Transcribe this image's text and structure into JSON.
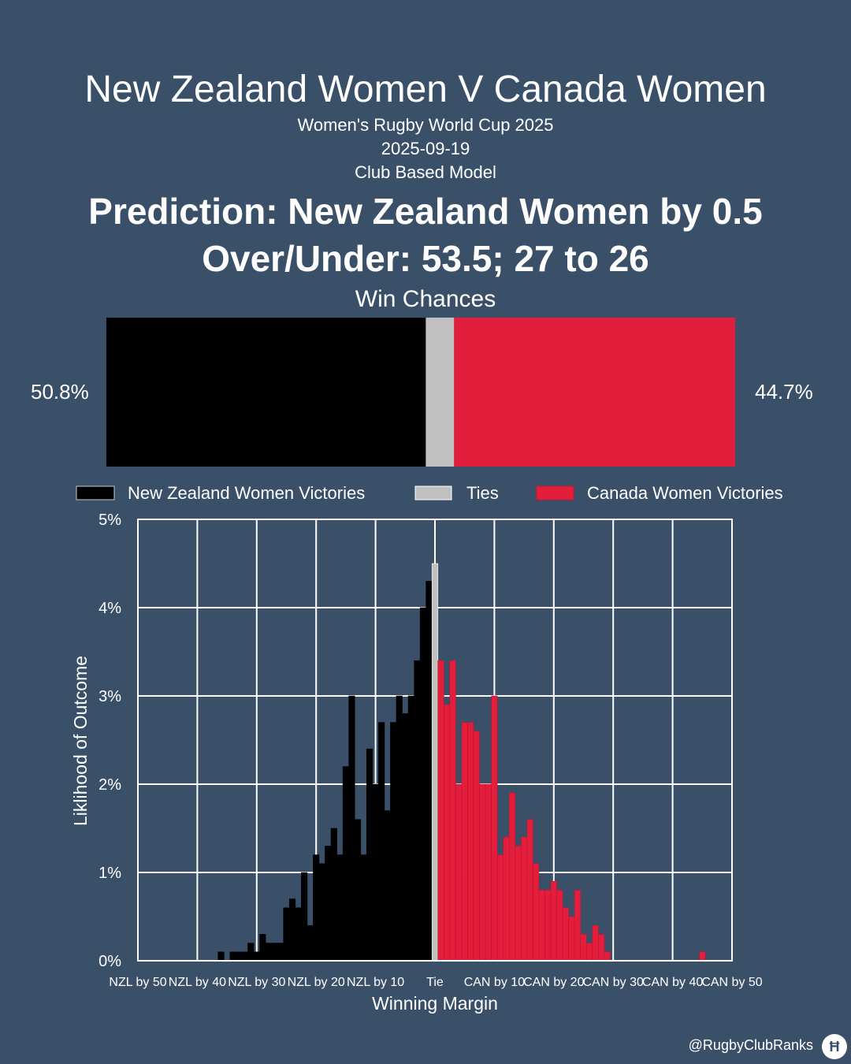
{
  "header": {
    "title": "New Zealand Women V Canada Women",
    "competition": "Women's Rugby World Cup 2025",
    "date": "2025-09-19",
    "model": "Club Based Model",
    "prediction": "Prediction: New Zealand Women by 0.5",
    "over_under": "Over/Under: 53.5; 27 to 26"
  },
  "win_chances": {
    "label": "Win Chances",
    "nzl_pct_label": "50.8%",
    "can_pct_label": "44.7%",
    "nzl": 50.8,
    "tie": 4.5,
    "can": 44.7,
    "colors": {
      "nzl": "#000000",
      "tie": "#c0c0c0",
      "can": "#e31e3c"
    }
  },
  "legend": {
    "nzl": "New Zealand Women Victories",
    "tie": "Ties",
    "can": "Canada Women Victories"
  },
  "chart_data": {
    "type": "bar",
    "xlabel": "Winning Margin",
    "ylabel": "Liklihood of Outcome",
    "xlim": [
      -50,
      50
    ],
    "ylim": [
      0,
      5
    ],
    "y_ticks": [
      "0%",
      "1%",
      "2%",
      "3%",
      "4%",
      "5%"
    ],
    "x_ticks": [
      "NZL by 50",
      "NZL by 40",
      "NZL by 30",
      "NZL by 20",
      "NZL by 10",
      "Tie",
      "CAN by 10",
      "CAN by 20",
      "CAN by 30",
      "CAN by 40",
      "CAN by 50"
    ],
    "grid": true,
    "series": [
      {
        "name": "New Zealand Women Victories",
        "color": "#000000",
        "x": [
          -1,
          -2,
          -3,
          -4,
          -5,
          -6,
          -7,
          -8,
          -9,
          -10,
          -11,
          -12,
          -13,
          -14,
          -15,
          -16,
          -17,
          -18,
          -19,
          -20,
          -21,
          -22,
          -23,
          -24,
          -25,
          -26,
          -27,
          -28,
          -29,
          -30,
          -31,
          -32,
          -33,
          -34,
          -35,
          -36,
          -37,
          -38,
          -39,
          -40
        ],
        "values": [
          4.3,
          4.0,
          3.4,
          3.0,
          2.8,
          3.0,
          2.7,
          1.7,
          2.7,
          2.0,
          2.4,
          1.2,
          1.6,
          3.0,
          2.2,
          1.2,
          1.5,
          1.3,
          1.1,
          1.2,
          0.4,
          1.0,
          0.6,
          0.7,
          0.6,
          0.2,
          0.2,
          0.2,
          0.3,
          0.1,
          0.2,
          0.1,
          0.1,
          0.1,
          0.0,
          0.1,
          0.0,
          0.0,
          0.0,
          0.0
        ]
      },
      {
        "name": "Ties",
        "color": "#c0c0c0",
        "x": [
          0
        ],
        "values": [
          4.5
        ]
      },
      {
        "name": "Canada Women Victories",
        "color": "#e31e3c",
        "x": [
          1,
          2,
          3,
          4,
          5,
          6,
          7,
          8,
          9,
          10,
          11,
          12,
          13,
          14,
          15,
          16,
          17,
          18,
          19,
          20,
          21,
          22,
          23,
          24,
          25,
          26,
          27,
          28,
          29,
          30,
          31,
          32,
          33,
          34,
          35,
          36,
          37,
          38,
          39,
          40,
          41,
          42,
          43,
          44,
          45
        ],
        "values": [
          3.4,
          2.9,
          3.4,
          2.0,
          2.7,
          2.7,
          2.6,
          2.0,
          2.0,
          3.0,
          1.2,
          1.4,
          1.9,
          1.3,
          1.4,
          1.6,
          1.1,
          0.8,
          0.8,
          0.9,
          0.8,
          0.6,
          0.5,
          0.8,
          0.3,
          0.2,
          0.4,
          0.3,
          0.1,
          0.0,
          0.0,
          0.0,
          0.0,
          0.0,
          0.0,
          0.0,
          0.0,
          0.0,
          0.0,
          0.0,
          0.0,
          0.0,
          0.0,
          0.0,
          0.1
        ]
      }
    ]
  },
  "footer": {
    "handle": "@RugbyClubRanks",
    "logo_icon": "rugby-posts-icon"
  }
}
